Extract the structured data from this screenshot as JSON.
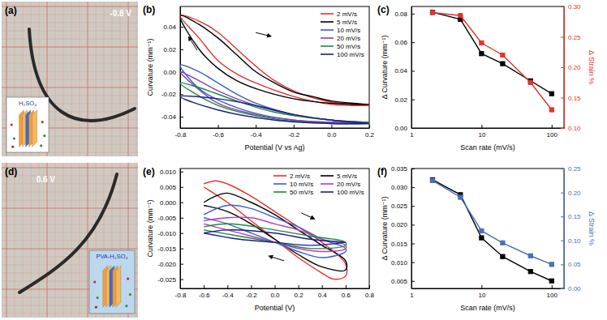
{
  "photos": [
    {
      "label": "(a)",
      "voltage": "-0.8 V",
      "inset": "H₂SO₄"
    },
    {
      "label": "(d)",
      "voltage": "0.6 V",
      "inset": "PVA-H₂SO₄"
    }
  ],
  "chart_data": [
    {
      "label": "(b)",
      "type": "line",
      "x_label": "Potential (V vs Ag)",
      "y_label": "Curvature (mm⁻¹)",
      "xlim": [
        -0.8,
        0.2
      ],
      "ylim": [
        -0.05,
        0.058
      ],
      "xticks": [
        -0.8,
        -0.6,
        -0.4,
        -0.2,
        {
          "value": 0,
          "label": "0.0"
        },
        0.2
      ],
      "yticks": [
        -0.04,
        -0.02,
        {
          "value": 0,
          "label": "0.00"
        },
        0.02,
        0.04
      ],
      "legend": "top-right",
      "series": [
        {
          "name": "2 mV/s",
          "color": "#e8302a",
          "line_style": "solid",
          "x": [
            0.2,
            0,
            -0.2,
            -0.4,
            -0.5,
            -0.6,
            -0.7,
            -0.8,
            -0.7,
            -0.6,
            -0.5,
            -0.4,
            -0.3,
            -0.2,
            -0.1,
            0,
            0.2
          ],
          "values": [
            -0.03,
            -0.029,
            -0.022,
            -0.01,
            -0.002,
            0.01,
            0.03,
            0.05,
            0.045,
            0.035,
            0.02,
            0.005,
            -0.008,
            -0.017,
            -0.023,
            -0.027,
            -0.03
          ]
        },
        {
          "name": "5 mV/s",
          "color": "#000000",
          "line_style": "solid",
          "x": [
            0.2,
            0,
            -0.2,
            -0.4,
            -0.5,
            -0.6,
            -0.7,
            -0.8,
            -0.7,
            -0.6,
            -0.5,
            -0.4,
            -0.3,
            -0.2,
            -0.1,
            0,
            0.2
          ],
          "values": [
            -0.029,
            -0.028,
            -0.024,
            -0.015,
            -0.008,
            0.003,
            0.02,
            0.05,
            0.042,
            0.03,
            0.015,
            0,
            -0.01,
            -0.018,
            -0.022,
            -0.026,
            -0.029
          ]
        },
        {
          "name": "10 mV/s",
          "color": "#3a5fcd",
          "line_style": "solid",
          "x": [
            0.2,
            0,
            -0.2,
            -0.4,
            -0.6,
            -0.7,
            -0.8,
            -0.7,
            -0.6,
            -0.5,
            -0.4,
            -0.2,
            0,
            0.2
          ],
          "values": [
            -0.045,
            -0.045,
            -0.043,
            -0.037,
            -0.025,
            -0.015,
            0.006,
            0,
            -0.01,
            -0.02,
            -0.028,
            -0.038,
            -0.043,
            -0.045
          ]
        },
        {
          "name": "20 mV/s",
          "color": "#8a3fb0",
          "line_style": "solid",
          "x": [
            0.2,
            0,
            -0.2,
            -0.4,
            -0.6,
            -0.8,
            -0.7,
            -0.6,
            -0.4,
            -0.2,
            0,
            0.2
          ],
          "values": [
            -0.045,
            -0.045,
            -0.043,
            -0.038,
            -0.028,
            0,
            -0.008,
            -0.017,
            -0.03,
            -0.038,
            -0.043,
            -0.045
          ]
        },
        {
          "name": "50 mV/s",
          "color": "#1a8c3a",
          "line_style": "solid",
          "x": [
            0.2,
            0,
            -0.3,
            -0.6,
            -0.8,
            -0.7,
            -0.5,
            -0.3,
            0,
            0.2
          ],
          "values": [
            -0.046,
            -0.046,
            -0.042,
            -0.03,
            -0.01,
            -0.014,
            -0.026,
            -0.036,
            -0.043,
            -0.045
          ]
        },
        {
          "name": "100 mV/s",
          "color": "#1c1c8c",
          "line_style": "solid",
          "x": [
            0.2,
            0,
            -0.3,
            -0.6,
            -0.8,
            -0.6,
            -0.4,
            -0.2,
            0,
            0.2
          ],
          "values": [
            -0.046,
            -0.046,
            -0.043,
            -0.034,
            -0.022,
            -0.024,
            -0.03,
            -0.038,
            -0.043,
            -0.046
          ]
        }
      ]
    },
    {
      "label": "(c)",
      "type": "line",
      "log": "x",
      "x_label": "Scan rate (mV/s)",
      "y_label": "Δ Curvature (mm⁻¹)",
      "y2_label": "Δ Strain %",
      "xlim": [
        1,
        150
      ],
      "ylim": [
        0,
        0.085
      ],
      "y2lim": [
        0.1,
        0.3
      ],
      "xticks": [
        1,
        10,
        100
      ],
      "yticks": [
        {
          "value": 0,
          "label": "0.00"
        },
        0.02,
        0.04,
        0.06,
        0.08
      ],
      "y2ticks": [
        {
          "value": 0.1,
          "label": "0.10"
        },
        0.15,
        {
          "value": 0.2,
          "label": "0.20"
        },
        0.25,
        {
          "value": 0.3,
          "label": "0.30"
        }
      ],
      "x": [
        2,
        5,
        10,
        20,
        50,
        100
      ],
      "series": [
        {
          "color": "#000000",
          "marker": "square",
          "line_style": "solid",
          "values": [
            0.081,
            0.076,
            0.052,
            0.045,
            0.033,
            0.024
          ]
        },
        {
          "color": "#e53228",
          "marker": "square",
          "line_style": "solid",
          "axis": "y2",
          "values": [
            0.29,
            0.285,
            0.24,
            0.22,
            0.175,
            0.13
          ]
        }
      ]
    },
    {
      "label": "(e)",
      "type": "line",
      "x_label": "Potential (V)",
      "y_label": "Curvature (mm⁻¹)",
      "xlim": [
        -0.8,
        0.8
      ],
      "ylim": [
        -0.028,
        0.011
      ],
      "xticks": [
        -0.8,
        -0.6,
        -0.4,
        -0.2,
        {
          "value": 0,
          "label": "0.0"
        },
        0.2,
        0.4,
        0.6,
        0.8
      ],
      "yticks": [
        -0.025,
        {
          "value": -0.02,
          "label": "-0.020"
        },
        -0.015,
        {
          "value": -0.01,
          "label": "-0.010"
        },
        -0.005,
        {
          "value": 0,
          "label": "0.000"
        },
        0.005,
        {
          "value": 0.01,
          "label": "0.010"
        }
      ],
      "legend": "top-right",
      "series": [
        {
          "name": "2 mV/s",
          "color": "#e8302a",
          "line_style": "solid",
          "x": [
            -0.6,
            -0.5,
            -0.4,
            -0.2,
            0,
            0.2,
            0.4,
            0.6,
            0.6,
            0.5,
            0.4,
            0.2,
            0,
            -0.2,
            -0.4,
            -0.6
          ],
          "values": [
            0.006,
            0.007,
            0.006,
            0.002,
            -0.003,
            -0.008,
            -0.013,
            -0.02,
            -0.024,
            -0.025,
            -0.023,
            -0.018,
            -0.012,
            -0.006,
            0,
            0.005
          ]
        },
        {
          "name": "5 mV/s",
          "color": "#000000",
          "line_style": "solid",
          "x": [
            -0.6,
            -0.5,
            -0.4,
            -0.2,
            0,
            0.2,
            0.4,
            0.6,
            0.6,
            0.4,
            0.2,
            0,
            -0.2,
            -0.4,
            -0.6
          ],
          "values": [
            0,
            0.002,
            0.003,
            0,
            -0.004,
            -0.009,
            -0.014,
            -0.019,
            -0.022,
            -0.021,
            -0.017,
            -0.012,
            -0.007,
            -0.003,
            -0.001
          ]
        },
        {
          "name": "10 mV/s",
          "color": "#3a5fcd",
          "line_style": "solid",
          "x": [
            -0.6,
            -0.4,
            -0.2,
            0,
            0.2,
            0.4,
            0.6,
            0.6,
            0.4,
            0.2,
            0,
            -0.2,
            -0.4,
            -0.6
          ],
          "values": [
            -0.004,
            -0.001,
            -0.002,
            -0.005,
            -0.008,
            -0.012,
            -0.015,
            -0.016,
            -0.018,
            -0.016,
            -0.013,
            -0.01,
            -0.007,
            -0.005
          ]
        },
        {
          "name": "20 mV/s",
          "color": "#c03ac0",
          "line_style": "solid",
          "x": [
            -0.6,
            -0.4,
            -0.2,
            0,
            0.2,
            0.4,
            0.6,
            0.6,
            0.4,
            0.2,
            0,
            -0.2,
            -0.4,
            -0.6
          ],
          "values": [
            -0.006,
            -0.005,
            -0.005,
            -0.007,
            -0.009,
            -0.012,
            -0.014,
            -0.015,
            -0.016,
            -0.015,
            -0.013,
            -0.011,
            -0.009,
            -0.007
          ]
        },
        {
          "name": "50 mV/s",
          "color": "#1a8c3a",
          "line_style": "solid",
          "x": [
            -0.6,
            -0.4,
            0,
            0.3,
            0.6,
            0.6,
            0.3,
            0,
            -0.3,
            -0.6
          ],
          "values": [
            -0.008,
            -0.007,
            -0.009,
            -0.011,
            -0.013,
            -0.014,
            -0.015,
            -0.013,
            -0.011,
            -0.009
          ]
        },
        {
          "name": "100 mV/s",
          "color": "#1c1c8c",
          "line_style": "solid",
          "x": [
            -0.6,
            -0.4,
            0,
            0.3,
            0.6,
            0.6,
            0.3,
            0,
            -0.3,
            -0.6
          ],
          "values": [
            -0.01,
            -0.009,
            -0.01,
            -0.012,
            -0.013,
            -0.013,
            -0.014,
            -0.013,
            -0.012,
            -0.01
          ]
        }
      ]
    },
    {
      "label": "(f)",
      "type": "line",
      "log": "x",
      "x_label": "Scan rate (mV/s)",
      "y_label": "Δ Curvature (mm⁻¹)",
      "y2_label": "Δ Strain %",
      "xlim": [
        1,
        150
      ],
      "ylim": [
        0.003,
        0.035
      ],
      "y2lim": [
        0,
        0.25
      ],
      "xticks": [
        1,
        10,
        100
      ],
      "yticks": [
        0.005,
        {
          "value": 0.01,
          "label": "0.010"
        },
        0.015,
        {
          "value": 0.02,
          "label": "0.020"
        },
        0.025,
        {
          "value": 0.03,
          "label": "0.030"
        },
        0.035
      ],
      "y2ticks": [
        {
          "value": 0,
          "label": "0.00"
        },
        0.05,
        {
          "value": 0.1,
          "label": "0.10"
        },
        0.15,
        {
          "value": 0.2,
          "label": "0.20"
        },
        0.25
      ],
      "x": [
        2,
        5,
        10,
        20,
        50,
        100
      ],
      "series": [
        {
          "color": "#000000",
          "marker": "square",
          "line_style": "solid",
          "values": [
            0.032,
            0.028,
            0.0165,
            0.0115,
            0.0075,
            0.005
          ]
        },
        {
          "color": "#4a6fb5",
          "marker": "square",
          "line_style": "solid",
          "axis": "y2",
          "values": [
            0.225,
            0.19,
            0.12,
            0.095,
            0.068,
            0.05
          ]
        }
      ]
    }
  ]
}
